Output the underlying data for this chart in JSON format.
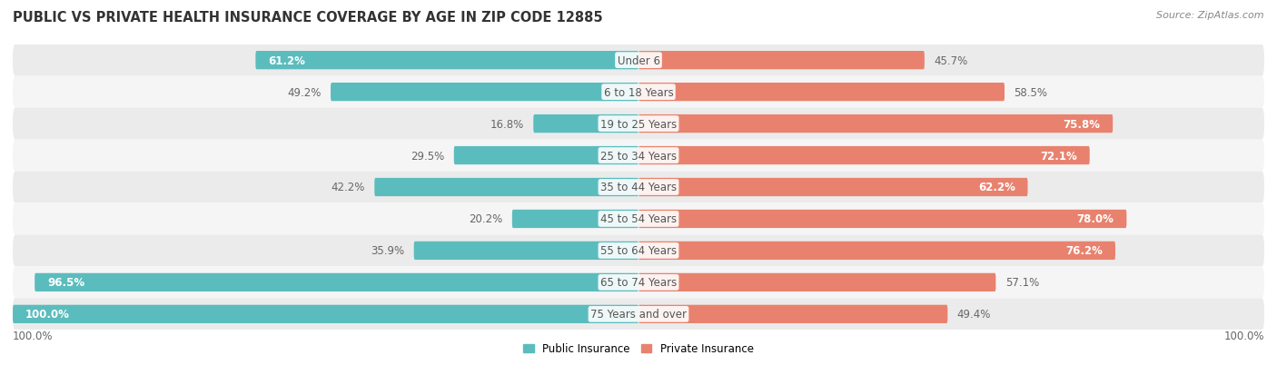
{
  "title": "PUBLIC VS PRIVATE HEALTH INSURANCE COVERAGE BY AGE IN ZIP CODE 12885",
  "source": "Source: ZipAtlas.com",
  "categories": [
    "Under 6",
    "6 to 18 Years",
    "19 to 25 Years",
    "25 to 34 Years",
    "35 to 44 Years",
    "45 to 54 Years",
    "55 to 64 Years",
    "65 to 74 Years",
    "75 Years and over"
  ],
  "public_values": [
    61.2,
    49.2,
    16.8,
    29.5,
    42.2,
    20.2,
    35.9,
    96.5,
    100.0
  ],
  "private_values": [
    45.7,
    58.5,
    75.8,
    72.1,
    62.2,
    78.0,
    76.2,
    57.1,
    49.4
  ],
  "public_color": "#5bbcbe",
  "private_color": "#e8826e",
  "row_bg_even": "#ebebeb",
  "row_bg_odd": "#f5f5f5",
  "max_value": 100.0,
  "bar_height": 0.58,
  "title_fontsize": 10.5,
  "label_fontsize": 8.5,
  "category_fontsize": 8.5,
  "source_fontsize": 8,
  "legend_fontsize": 8.5,
  "axis_label": "100.0%",
  "figsize": [
    14.06,
    4.14
  ],
  "dpi": 100
}
